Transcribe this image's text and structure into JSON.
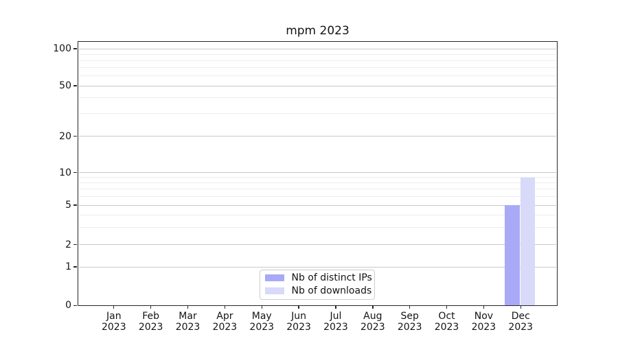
{
  "title": "mpm 2023",
  "chart_data": {
    "type": "bar",
    "title": "mpm 2023",
    "categories": [
      "Jan",
      "Feb",
      "Mar",
      "Apr",
      "May",
      "Jun",
      "Jul",
      "Aug",
      "Sep",
      "Oct",
      "Nov",
      "Dec"
    ],
    "year": "2023",
    "series": [
      {
        "name": "Nb of distinct IPs",
        "color": "#a9a9f7",
        "values": [
          0,
          0,
          0,
          0,
          0,
          0,
          0,
          0,
          0,
          0,
          0,
          5
        ]
      },
      {
        "name": "Nb of downloads",
        "color": "#d9d9fa",
        "values": [
          0,
          0,
          0,
          0,
          0,
          0,
          0,
          0,
          0,
          0,
          0,
          9
        ]
      }
    ],
    "xlabel": "",
    "ylabel": "",
    "y_axis": {
      "scale": "log-like",
      "major_ticks": [
        0,
        1,
        2,
        5,
        10,
        20,
        50,
        100
      ],
      "minor_ticks": [
        3,
        4,
        6,
        7,
        8,
        9,
        30,
        40,
        60,
        70,
        80,
        90
      ],
      "ylim": [
        0,
        120
      ]
    },
    "grid": "horizontal",
    "legend_position": "bottom-center"
  },
  "colors": {
    "bar_distinct_ips": "#a9a9f7",
    "bar_downloads": "#d9d9fa",
    "grid_major": "#c9c9c9",
    "grid_minor": "#ededed",
    "spine": "#262626"
  }
}
